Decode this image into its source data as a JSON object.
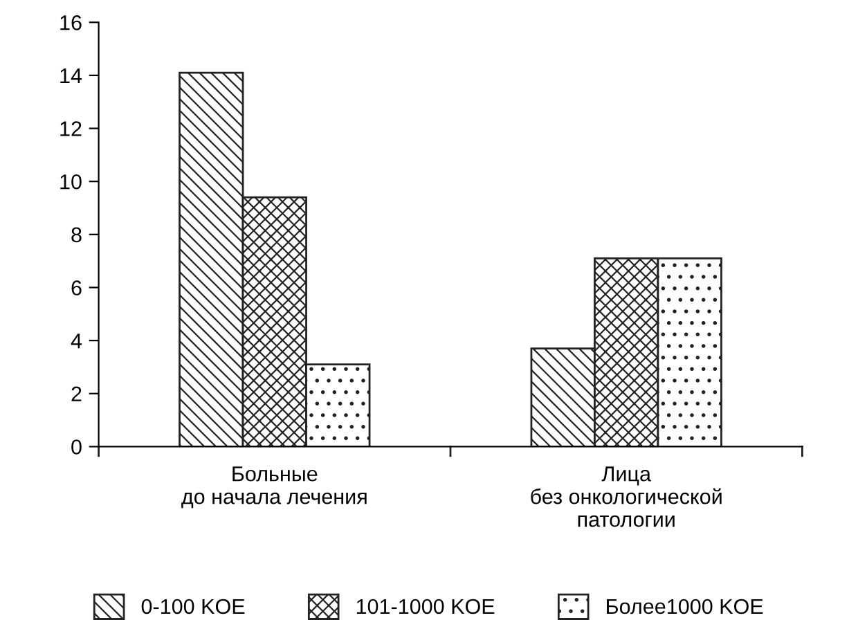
{
  "chart_data": {
    "type": "bar",
    "categories": [
      "Больные\nдо начала лечения",
      "Лица\nбез онкологической\nпатологии"
    ],
    "series": [
      {
        "name": "0-100 KOE",
        "color": "#222222",
        "values": [
          14.1,
          3.7
        ]
      },
      {
        "name": "101-1000 KOE",
        "color": "#222222",
        "values": [
          9.4,
          7.1
        ]
      },
      {
        "name": "Более1000 KOE",
        "color": "#222222",
        "values": [
          3.1,
          7.1
        ]
      }
    ],
    "ylim": [
      0,
      16
    ],
    "yticks": [
      0,
      2,
      4,
      6,
      8,
      10,
      12,
      14,
      16
    ],
    "grid": false,
    "legend": "bottom"
  }
}
